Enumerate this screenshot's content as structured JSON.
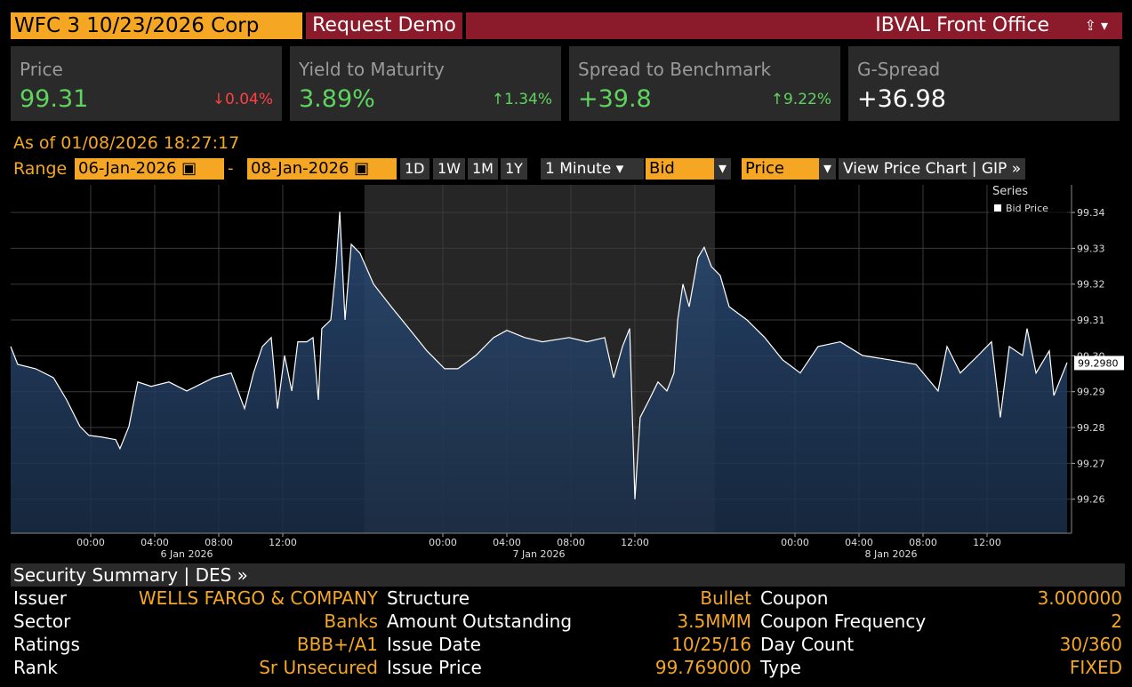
{
  "header": {
    "ticker": "WFC 3 10/23/2026 Corp",
    "demo": "Request Demo",
    "app": "IBVAL Front Office"
  },
  "stats": [
    {
      "label": "Price",
      "value": "99.31",
      "change": "↓0.04%"
    },
    {
      "label": "Yield to Maturity",
      "value": "3.89%",
      "change": "↑1.34%"
    },
    {
      "label": "Spread to Benchmark",
      "value": "+39.8",
      "change": "↑9.22%"
    },
    {
      "label": "G-Spread",
      "value": "+36.98"
    }
  ],
  "as_of": "As of 01/08/2026 18:27:17",
  "controls": {
    "range": "Range",
    "start": "06-Jan-2026",
    "dash": "-",
    "end": "08-Jan-2026",
    "periods": [
      "1D",
      "1W",
      "1M",
      "1Y"
    ],
    "interval": "1 Minute",
    "side": "Bid",
    "field": "Price",
    "link": "View Price Chart | GIP »"
  },
  "chart_data": {
    "type": "line",
    "legend_title": "Series",
    "x": [
      0,
      0.44,
      1.56,
      2.67,
      3.5,
      4.33,
      4.89,
      5.72,
      6.56,
      6.83,
      7.39,
      7.94,
      8.78,
      9.89,
      11,
      12.67,
      13.78,
      14.61,
      15.17,
      15.72,
      16.28,
      16.67,
      17.11,
      17.56,
      17.94,
      18.5,
      18.89,
      19.22,
      19.44,
      20,
      20.33,
      20.56,
      20.89,
      21.28,
      21.83,
      22.67,
      23.78,
      24.89,
      26,
      27.11,
      27.94,
      29.06,
      30.17,
      31,
      32.11,
      33.22,
      34.89,
      36,
      37.11,
      37.67,
      38.22,
      38.67,
      39,
      39.33,
      39.89,
      40.44,
      41,
      41.44,
      41.67,
      42,
      42.39,
      42.94,
      43.33,
      43.78,
      44.33,
      44.89,
      46,
      47.11,
      48.22,
      49.33,
      50.44,
      51.83,
      53.22,
      54.89,
      56.56,
      57.94,
      58.5,
      59.33,
      60.44,
      61.28,
      61.83,
      62.39,
      63.22,
      63.5,
      64.06,
      64.89,
      65.17,
      66
    ],
    "series": [
      {
        "name": "Bid Price",
        "color": "#ffffff",
        "values": [
          99.3026,
          99.2976,
          99.2964,
          99.2939,
          99.2877,
          99.2803,
          99.2778,
          99.2773,
          99.2766,
          99.2741,
          99.2803,
          99.2927,
          99.2915,
          99.2927,
          99.2902,
          99.2939,
          99.2952,
          99.2853,
          99.2952,
          99.3026,
          99.3051,
          99.2853,
          99.3001,
          99.2902,
          99.3039,
          99.3039,
          99.3051,
          99.2877,
          99.3076,
          99.31,
          99.3249,
          99.3402,
          99.31,
          99.3311,
          99.3286,
          99.32,
          99.3137,
          99.3076,
          99.3014,
          99.2964,
          99.2964,
          99.3001,
          99.3051,
          99.3071,
          99.3051,
          99.3039,
          99.3051,
          99.3039,
          99.3051,
          99.2939,
          99.3026,
          99.3076,
          99.26,
          99.2828,
          99.2877,
          99.2927,
          99.2902,
          99.2952,
          99.31,
          99.32,
          99.3137,
          99.3274,
          99.3303,
          99.3249,
          99.3224,
          99.3137,
          99.31,
          99.3051,
          99.2989,
          99.2952,
          99.3026,
          99.3039,
          99.3001,
          99.2989,
          99.2976,
          99.2902,
          99.3026,
          99.2952,
          99.3001,
          99.3039,
          99.2828,
          99.3026,
          99.3001,
          99.3076,
          99.2952,
          99.3014,
          99.2889,
          99.2981
        ]
      }
    ],
    "last_label": {
      "value": 99.298,
      "label": "99.2980"
    },
    "xlim": [
      0,
      66
    ],
    "ylim": [
      99.2505,
      99.3477
    ],
    "xticks": [
      {
        "value": 5,
        "label": "00:00"
      },
      {
        "value": 9,
        "label": "04:00"
      },
      {
        "value": 13,
        "label": "08:00"
      },
      {
        "value": 17,
        "label": "12:00"
      },
      {
        "value": 27,
        "label": "00:00"
      },
      {
        "value": 31,
        "label": "04:00"
      },
      {
        "value": 35,
        "label": "08:00"
      },
      {
        "value": 39,
        "label": "12:00"
      },
      {
        "value": 49,
        "label": "00:00"
      },
      {
        "value": 53,
        "label": "04:00"
      },
      {
        "value": 57,
        "label": "08:00"
      },
      {
        "value": 61,
        "label": "12:00"
      }
    ],
    "day_labels": [
      {
        "value": 11,
        "label": "6 Jan 2026"
      },
      {
        "value": 33,
        "label": "7 Jan 2026"
      },
      {
        "value": 55,
        "label": "8 Jan 2026"
      }
    ],
    "yticks": [
      99.26,
      99.27,
      99.28,
      99.29,
      {
        "value": 99.3,
        "label": "99.30"
      },
      99.31,
      99.32,
      99.33,
      99.34
    ],
    "grid": true
  },
  "summary": {
    "title": "Security Summary | DES »",
    "rows": [
      [
        "Issuer",
        "WELLS FARGO & COMPANY",
        "Structure",
        "Bullet",
        "Coupon",
        "3.000000"
      ],
      [
        "Sector",
        "Banks",
        "Amount Outstanding",
        "3.5MMM",
        "Coupon Frequency",
        "2"
      ],
      [
        "Ratings",
        "BBB+/A1",
        "Issue Date",
        "10/25/16",
        "Day Count",
        "30/360"
      ],
      [
        "Rank",
        "Sr Unsecured",
        "Issue Price",
        "99.769000",
        "Type",
        "FIXED"
      ]
    ]
  }
}
